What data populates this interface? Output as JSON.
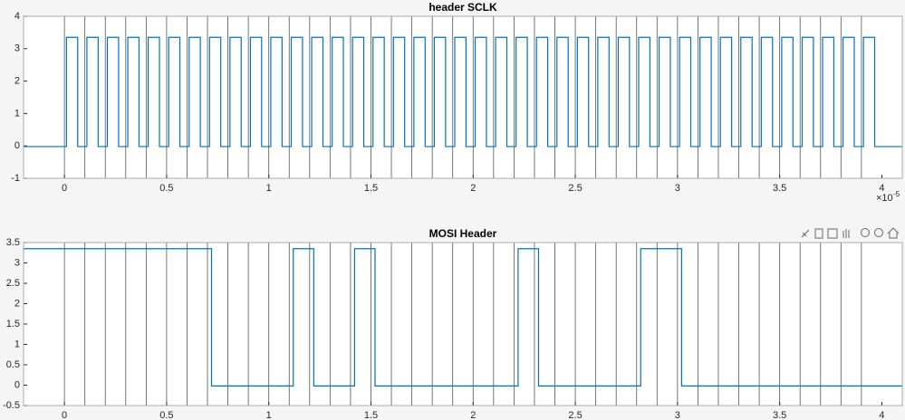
{
  "chart_data": [
    {
      "type": "line",
      "title": "header SCLK",
      "x": [
        -0.2,
        0.01,
        0.01,
        0.065,
        0.065,
        0.11,
        0.11,
        0.165,
        0.165,
        0.21,
        0.21,
        0.265,
        0.265,
        0.31,
        0.31,
        0.365,
        0.365,
        0.41,
        0.41,
        0.465,
        0.465,
        0.51,
        0.51,
        0.565,
        0.565,
        0.61,
        0.61,
        0.665,
        0.665,
        0.71,
        0.71,
        0.765,
        0.765,
        0.81,
        0.81,
        0.865,
        0.865,
        0.91,
        0.91,
        0.965,
        0.965,
        1.01,
        1.01,
        1.065,
        1.065,
        1.11,
        1.11,
        1.165,
        1.165,
        1.21,
        1.21,
        1.265,
        1.265,
        1.31,
        1.31,
        1.365,
        1.365,
        1.41,
        1.41,
        1.465,
        1.465,
        1.51,
        1.51,
        1.565,
        1.565,
        1.61,
        1.61,
        1.665,
        1.665,
        1.71,
        1.71,
        1.765,
        1.765,
        1.81,
        1.81,
        1.865,
        1.865,
        1.91,
        1.91,
        1.965,
        1.965,
        2.01,
        2.01,
        2.065,
        2.065,
        2.11,
        2.11,
        2.165,
        2.165,
        2.21,
        2.21,
        2.265,
        2.265,
        2.31,
        2.31,
        2.365,
        2.365,
        2.41,
        2.41,
        2.465,
        2.465,
        2.51,
        2.51,
        2.565,
        2.565,
        2.61,
        2.61,
        2.665,
        2.665,
        2.71,
        2.71,
        2.765,
        2.765,
        2.81,
        2.81,
        2.865,
        2.865,
        2.91,
        2.91,
        2.965,
        2.965,
        3.01,
        3.01,
        3.065,
        3.065,
        3.11,
        3.11,
        3.165,
        3.165,
        3.21,
        3.21,
        3.265,
        3.265,
        3.31,
        3.31,
        3.365,
        3.365,
        3.41,
        3.41,
        3.465,
        3.465,
        3.51,
        3.51,
        3.565,
        3.565,
        3.61,
        3.61,
        3.665,
        3.665,
        3.71,
        3.71,
        3.765,
        3.765,
        3.81,
        3.81,
        3.865,
        3.865,
        3.91,
        3.91,
        3.965,
        3.965,
        4.1
      ],
      "series": [
        {
          "color": "#0072bd",
          "values": [
            -0.02,
            -0.02,
            3.35,
            3.35,
            -0.02,
            -0.02,
            3.35,
            3.35,
            -0.02,
            -0.02,
            3.35,
            3.35,
            -0.02,
            -0.02,
            3.35,
            3.35,
            -0.02,
            -0.02,
            3.35,
            3.35,
            -0.02,
            -0.02,
            3.35,
            3.35,
            -0.02,
            -0.02,
            3.35,
            3.35,
            -0.02,
            -0.02,
            3.35,
            3.35,
            -0.02,
            -0.02,
            3.35,
            3.35,
            -0.02,
            -0.02,
            3.35,
            3.35,
            -0.02,
            -0.02,
            3.35,
            3.35,
            -0.02,
            -0.02,
            3.35,
            3.35,
            -0.02,
            -0.02,
            3.35,
            3.35,
            -0.02,
            -0.02,
            3.35,
            3.35,
            -0.02,
            -0.02,
            3.35,
            3.35,
            -0.02,
            -0.02,
            3.35,
            3.35,
            -0.02,
            -0.02,
            3.35,
            3.35,
            -0.02,
            -0.02,
            3.35,
            3.35,
            -0.02,
            -0.02,
            3.35,
            3.35,
            -0.02,
            -0.02,
            3.35,
            3.35,
            -0.02,
            -0.02,
            3.35,
            3.35,
            -0.02,
            -0.02,
            3.35,
            3.35,
            -0.02,
            -0.02,
            3.35,
            3.35,
            -0.02,
            -0.02,
            3.35,
            3.35,
            -0.02,
            -0.02,
            3.35,
            3.35,
            -0.02,
            -0.02,
            3.35,
            3.35,
            -0.02,
            -0.02,
            3.35,
            3.35,
            -0.02,
            -0.02,
            3.35,
            3.35,
            -0.02,
            -0.02,
            3.35,
            3.35,
            -0.02,
            -0.02,
            3.35,
            3.35,
            -0.02,
            -0.02,
            3.35,
            3.35,
            -0.02,
            -0.02,
            3.35,
            3.35,
            -0.02,
            -0.02,
            3.35,
            3.35,
            -0.02,
            -0.02,
            3.35,
            3.35,
            -0.02,
            -0.02,
            3.35,
            3.35,
            -0.02,
            -0.02,
            3.35,
            3.35,
            -0.02,
            -0.02,
            3.35,
            3.35,
            -0.02,
            -0.02,
            3.35,
            3.35,
            -0.02,
            -0.02,
            3.35,
            3.35,
            -0.02,
            -0.02,
            3.35,
            3.35,
            -0.02,
            -0.02
          ]
        }
      ],
      "xlim": [
        -0.2,
        4.1
      ],
      "xticks": [
        0,
        0.5,
        1,
        1.5,
        2,
        2.5,
        3,
        3.5,
        4
      ],
      "ylim": [
        -1,
        4
      ],
      "yticks": [
        -1,
        0,
        1,
        2,
        3,
        4
      ],
      "x_exponent_base": "×10",
      "x_exponent": "-5",
      "vlines": [
        0,
        0.1,
        0.2,
        0.3,
        0.4,
        0.5,
        0.6,
        0.7,
        0.8,
        0.9,
        1,
        1.1,
        1.2,
        1.3,
        1.4,
        1.5,
        1.6,
        1.7,
        1.8,
        1.9,
        2,
        2.1,
        2.2,
        2.3,
        2.4,
        2.5,
        2.6,
        2.7,
        2.8,
        2.9,
        3,
        3.1,
        3.2,
        3.3,
        3.4,
        3.5,
        3.6,
        3.7,
        3.8,
        3.9
      ],
      "vline_color": "#555555"
    },
    {
      "type": "line",
      "title": "MOSI Header",
      "x": [
        -0.2,
        0.72,
        0.72,
        1.12,
        1.12,
        1.22,
        1.22,
        1.42,
        1.42,
        1.52,
        1.52,
        2.22,
        2.22,
        2.32,
        2.32,
        2.82,
        2.82,
        3.02,
        3.02,
        4.1
      ],
      "series": [
        {
          "color": "#0072bd",
          "values": [
            3.35,
            3.35,
            -0.02,
            -0.02,
            3.35,
            3.35,
            -0.02,
            -0.02,
            3.35,
            3.35,
            -0.02,
            -0.02,
            3.35,
            3.35,
            -0.02,
            -0.02,
            3.35,
            3.35,
            -0.02,
            -0.02
          ]
        }
      ],
      "xlim": [
        -0.2,
        4.1
      ],
      "xticks": [
        0,
        0.5,
        1,
        1.5,
        2,
        2.5,
        3,
        3.5,
        4
      ],
      "ylim": [
        -0.5,
        3.5
      ],
      "yticks": [
        -0.5,
        0,
        0.5,
        1,
        1.5,
        2,
        2.5,
        3,
        3.5
      ],
      "vlines": [
        0,
        0.1,
        0.2,
        0.3,
        0.4,
        0.5,
        0.6,
        0.7,
        0.8,
        0.9,
        1,
        1.1,
        1.2,
        1.3,
        1.4,
        1.5,
        1.6,
        1.7,
        1.8,
        1.9,
        2,
        2.1,
        2.2,
        2.3,
        2.4,
        2.5,
        2.6,
        2.7,
        2.8,
        2.9,
        3,
        3.1,
        3.2,
        3.3,
        3.4,
        3.5,
        3.6,
        3.7,
        3.8,
        3.9
      ],
      "vline_color": "#555555"
    }
  ]
}
